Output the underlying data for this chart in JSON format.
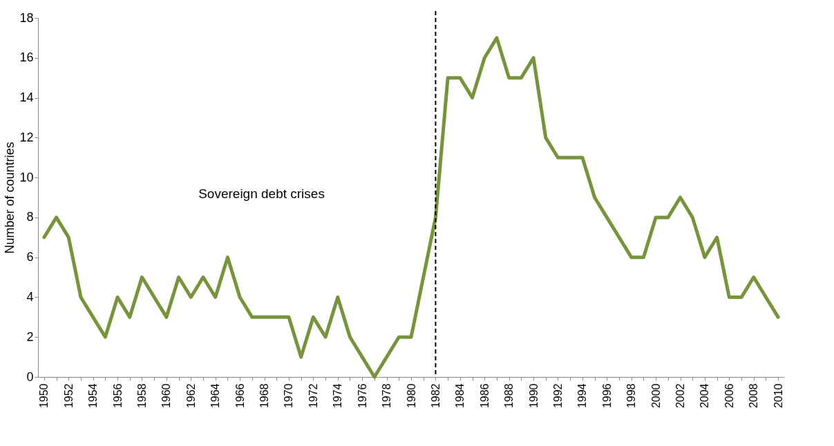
{
  "chart_data": {
    "type": "line",
    "ylabel": "Number  of countries",
    "categories": [
      "1950",
      null,
      "1952",
      null,
      "1954",
      null,
      "1956",
      null,
      "1958",
      null,
      "1960",
      null,
      "1962",
      null,
      "1964",
      null,
      "1966",
      null,
      "1968",
      null,
      "1970",
      null,
      "1972",
      null,
      "1974",
      null,
      "1976",
      null,
      "1978",
      null,
      "1980",
      null,
      "1982",
      null,
      "1984",
      null,
      "1986",
      null,
      "1988",
      null,
      "1990",
      null,
      "1992",
      null,
      "1994",
      null,
      "1996",
      null,
      "1998",
      null,
      "2000",
      null,
      "2002",
      null,
      "2004",
      null,
      "2006",
      null,
      "2008",
      null,
      "2010"
    ],
    "series": [
      {
        "color": "#77933c",
        "values": [
          7,
          8,
          7,
          4,
          3,
          2,
          4,
          3,
          5,
          4,
          3,
          5,
          4,
          5,
          4,
          6,
          4,
          3,
          3,
          3,
          3,
          1,
          3,
          2,
          4,
          2,
          1,
          0,
          1,
          2,
          2,
          5,
          8,
          15,
          15,
          14,
          16,
          17,
          15,
          15,
          16,
          12,
          11,
          11,
          11,
          9,
          8,
          7,
          6,
          6,
          8,
          8,
          9,
          8,
          6,
          7,
          4,
          4,
          5,
          4,
          3
        ]
      }
    ],
    "ylim": [
      0,
      18
    ],
    "yticks": [
      0,
      2,
      4,
      6,
      8,
      10,
      12,
      14,
      16,
      18
    ],
    "ref_lines": [
      {
        "axis": "x",
        "value": "1982",
        "color": "#000000",
        "line_style": "dashed"
      }
    ],
    "annotations": [
      "Sovereign debt crises"
    ],
    "grid": false,
    "marker": "none",
    "line_style": "solid"
  }
}
